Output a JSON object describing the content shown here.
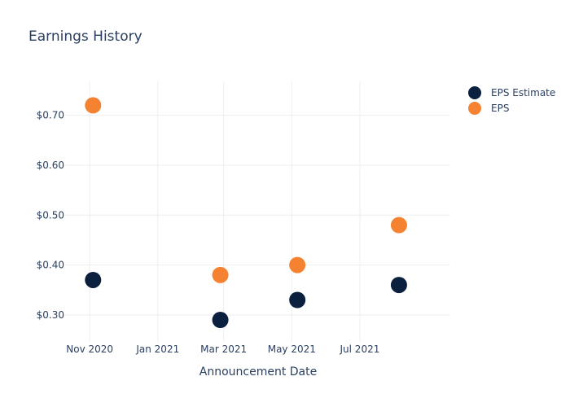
{
  "chart_data": {
    "type": "scatter",
    "title": "Earnings History",
    "xlabel": "Announcement Date",
    "ylabel": "",
    "x_ticks": [
      {
        "date": "2020-11-01",
        "label": "Nov 2020"
      },
      {
        "date": "2021-01-01",
        "label": "Jan 2021"
      },
      {
        "date": "2021-03-01",
        "label": "Mar 2021"
      },
      {
        "date": "2021-05-01",
        "label": "May 2021"
      },
      {
        "date": "2021-07-01",
        "label": "Jul 2021"
      }
    ],
    "y_ticks": [
      {
        "value": 0.3,
        "label": "$0.30"
      },
      {
        "value": 0.4,
        "label": "$0.40"
      },
      {
        "value": 0.5,
        "label": "$0.50"
      },
      {
        "value": 0.6,
        "label": "$0.60"
      },
      {
        "value": 0.7,
        "label": "$0.70"
      }
    ],
    "xlim": [
      "2020-10-10",
      "2021-09-20"
    ],
    "ylim": [
      0.246,
      0.768
    ],
    "grid": true,
    "legend_position": "top-right",
    "series": [
      {
        "name": "EPS Estimate",
        "color": "#0b1f3f",
        "points": [
          {
            "x": "2020-11-04",
            "y": 0.37
          },
          {
            "x": "2021-02-26",
            "y": 0.29
          },
          {
            "x": "2021-05-06",
            "y": 0.33
          },
          {
            "x": "2021-08-05",
            "y": 0.36
          }
        ]
      },
      {
        "name": "EPS",
        "color": "#f58231",
        "points": [
          {
            "x": "2020-11-04",
            "y": 0.72
          },
          {
            "x": "2021-02-26",
            "y": 0.38
          },
          {
            "x": "2021-05-06",
            "y": 0.4
          },
          {
            "x": "2021-08-05",
            "y": 0.48
          }
        ]
      }
    ]
  }
}
